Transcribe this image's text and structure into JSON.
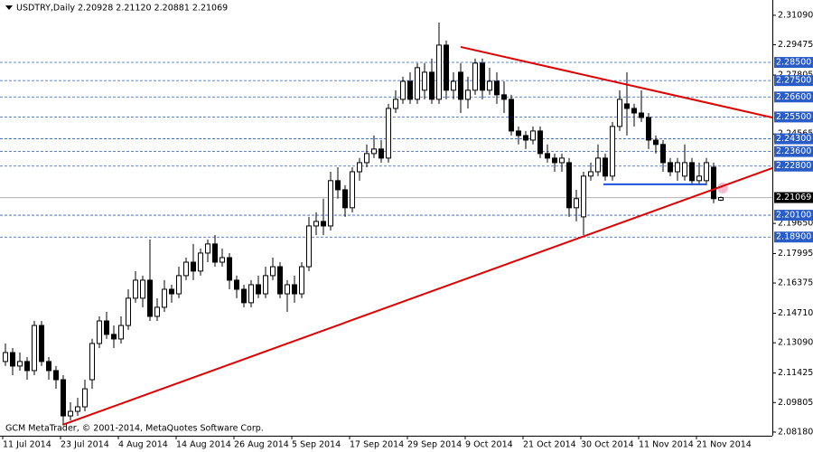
{
  "chart_data": {
    "type": "candlestick",
    "title": "USDTRY,Daily  2.20928 2.21120 2.20881 2.21069",
    "footer": "GCM MetaTrader, © 2001-2014, MetaQuotes Software Corp.",
    "up_color": "#ffffff",
    "down_color": "#000000",
    "edge_color": "#000000",
    "ylim": [
      2.0798,
      2.3193
    ],
    "yticks": [
      {
        "value": 2.3109,
        "label": "2.31090"
      },
      2.29475,
      2.27805,
      2.24565,
      {
        "value": 2.1965,
        "label": "2.19650"
      },
      2.17995,
      2.16375,
      {
        "value": 2.1471,
        "label": "2.14710"
      },
      {
        "value": 2.1309,
        "label": "2.13090"
      },
      2.11425,
      2.09805,
      {
        "value": 2.0818,
        "label": "2.08180"
      }
    ],
    "levels": [
      {
        "value": 2.285,
        "label": "2.28500"
      },
      {
        "value": 2.275,
        "label": "2.27500"
      },
      {
        "value": 2.266,
        "label": "2.26600"
      },
      {
        "value": 2.255,
        "label": "2.25500"
      },
      {
        "value": 2.243,
        "label": "2.24300"
      },
      {
        "value": 2.236,
        "label": "2.23600"
      },
      {
        "value": 2.228,
        "label": "2.22800"
      },
      {
        "value": 2.201,
        "label": "2.20100"
      },
      {
        "value": 2.189,
        "label": "2.18900"
      }
    ],
    "level_color": "#2a5cc8",
    "current_price": 2.21069,
    "trendlines": [
      {
        "color": "#e00000",
        "x": [
          63,
          106.4
        ],
        "y": [
          2.2935,
          2.2547
        ]
      },
      {
        "color": "#e00000",
        "x": [
          7.9,
          106.4
        ],
        "y": [
          2.0858,
          2.2269
        ]
      },
      {
        "color": "#1e50dc",
        "x": [
          82.75,
          97
        ],
        "y": [
          2.218,
          2.218
        ]
      }
    ],
    "categories": [
      "11 Jul 2014",
      null,
      null,
      null,
      null,
      null,
      null,
      null,
      "23 Jul 2014",
      null,
      null,
      null,
      null,
      null,
      null,
      null,
      "4 Aug 2014",
      null,
      null,
      null,
      null,
      null,
      null,
      null,
      "14 Aug 2014",
      null,
      null,
      null,
      null,
      null,
      null,
      null,
      "26 Aug 2014",
      null,
      null,
      null,
      null,
      null,
      null,
      null,
      "5 Sep 2014",
      null,
      null,
      null,
      null,
      null,
      null,
      null,
      "17 Sep 2014",
      null,
      null,
      null,
      null,
      null,
      null,
      null,
      "29 Sep 2014",
      null,
      null,
      null,
      null,
      null,
      null,
      null,
      "9 Oct 2014",
      null,
      null,
      null,
      null,
      null,
      null,
      null,
      "21 Oct 2014",
      null,
      null,
      null,
      null,
      null,
      null,
      null,
      "30 Oct 2014",
      null,
      null,
      null,
      null,
      null,
      null,
      null,
      "11 Nov 2014",
      null,
      null,
      null,
      null,
      null,
      null,
      null,
      "21 Nov 2014",
      null,
      null,
      null
    ],
    "ohlc": [
      [
        2.1206,
        2.1305,
        2.1181,
        2.1255
      ],
      [
        2.1255,
        2.128,
        2.1131,
        2.1181
      ],
      [
        2.1181,
        2.1255,
        2.1156,
        2.1206
      ],
      [
        2.1206,
        2.123,
        2.1106,
        2.1156
      ],
      [
        2.1156,
        2.1429,
        2.1131,
        2.1404
      ],
      [
        2.1404,
        2.1429,
        2.1181,
        2.1206
      ],
      [
        2.1206,
        2.123,
        2.1106,
        2.1156
      ],
      [
        2.1156,
        2.1181,
        2.1056,
        2.1106
      ],
      [
        2.1106,
        2.1131,
        2.0858,
        2.0907
      ],
      [
        2.0907,
        2.0982,
        2.0882,
        2.0932
      ],
      [
        2.0932,
        2.1006,
        2.0907,
        2.0957
      ],
      [
        2.0957,
        2.1106,
        2.0932,
        2.1056
      ],
      [
        2.1106,
        2.133,
        2.1056,
        2.1305
      ],
      [
        2.1305,
        2.1454,
        2.128,
        2.1429
      ],
      [
        2.1429,
        2.1479,
        2.133,
        2.1355
      ],
      [
        2.1355,
        2.1404,
        2.128,
        2.133
      ],
      [
        2.133,
        2.1454,
        2.1305,
        2.1404
      ],
      [
        2.1404,
        2.1603,
        2.138,
        2.1554
      ],
      [
        2.1554,
        2.1703,
        2.1529,
        2.1653
      ],
      [
        2.1554,
        2.1678,
        2.1504,
        2.1653
      ],
      [
        2.1653,
        2.1876,
        2.1429,
        2.1454
      ],
      [
        2.1454,
        2.1554,
        2.1429,
        2.1504
      ],
      [
        2.1504,
        2.1653,
        2.1479,
        2.1603
      ],
      [
        2.1603,
        2.1628,
        2.1529,
        2.1578
      ],
      [
        2.1578,
        2.1727,
        2.1554,
        2.1678
      ],
      [
        2.1678,
        2.1777,
        2.1653,
        2.1752
      ],
      [
        2.1752,
        2.1852,
        2.1653,
        2.1703
      ],
      [
        2.1703,
        2.1827,
        2.1678,
        2.1802
      ],
      [
        2.1802,
        2.1876,
        2.1752,
        2.1852
      ],
      [
        2.1852,
        2.1901,
        2.1727,
        2.1752
      ],
      [
        2.1752,
        2.1827,
        2.1727,
        2.1777
      ],
      [
        2.1777,
        2.1802,
        2.1603,
        2.1653
      ],
      [
        2.1653,
        2.1678,
        2.1554,
        2.1603
      ],
      [
        2.1603,
        2.1628,
        2.1504,
        2.1529
      ],
      [
        2.1529,
        2.1653,
        2.1504,
        2.1628
      ],
      [
        2.1628,
        2.1678,
        2.1554,
        2.1578
      ],
      [
        2.1578,
        2.1727,
        2.1554,
        2.1678
      ],
      [
        2.1678,
        2.1777,
        2.1653,
        2.1727
      ],
      [
        2.1727,
        2.1752,
        2.1554,
        2.1578
      ],
      [
        2.1578,
        2.1653,
        2.1479,
        2.1628
      ],
      [
        2.1628,
        2.1678,
        2.1529,
        2.1578
      ],
      [
        2.1578,
        2.1752,
        2.1554,
        2.1727
      ],
      [
        2.1727,
        2.2001,
        2.1703,
        2.1951
      ],
      [
        2.1951,
        2.2026,
        2.1901,
        2.1976
      ],
      [
        2.1976,
        2.2101,
        2.1901,
        2.1951
      ],
      [
        2.1951,
        2.2249,
        2.1926,
        2.22
      ],
      [
        2.22,
        2.2274,
        2.2101,
        2.215
      ],
      [
        2.215,
        2.2175,
        2.2001,
        2.2051
      ],
      [
        2.2051,
        2.2274,
        2.2026,
        2.2249
      ],
      [
        2.2249,
        2.2324,
        2.22,
        2.2299
      ],
      [
        2.2299,
        2.2399,
        2.2274,
        2.2349
      ],
      [
        2.2349,
        2.2448,
        2.2324,
        2.2374
      ],
      [
        2.2374,
        2.2423,
        2.2299,
        2.2324
      ],
      [
        2.2324,
        2.2622,
        2.2299,
        2.2597
      ],
      [
        2.2597,
        2.2697,
        2.2572,
        2.2647
      ],
      [
        2.2647,
        2.2771,
        2.2622,
        2.2746
      ],
      [
        2.2746,
        2.2796,
        2.2622,
        2.2647
      ],
      [
        2.2647,
        2.2846,
        2.2622,
        2.2821
      ],
      [
        2.2697,
        2.2846,
        2.2647,
        2.2796
      ],
      [
        2.2796,
        2.2871,
        2.2622,
        2.2647
      ],
      [
        2.2647,
        2.3069,
        2.2622,
        2.2945
      ],
      [
        2.2945,
        2.297,
        2.2647,
        2.2697
      ],
      [
        2.2697,
        2.2796,
        2.2647,
        2.2746
      ],
      [
        2.2796,
        2.2846,
        2.2572,
        2.2647
      ],
      [
        2.2647,
        2.2771,
        2.2597,
        2.2697
      ],
      [
        2.2697,
        2.2871,
        2.2672,
        2.2846
      ],
      [
        2.2846,
        2.2871,
        2.2647,
        2.2697
      ],
      [
        2.2697,
        2.2821,
        2.2672,
        2.2746
      ],
      [
        2.2746,
        2.2796,
        2.2622,
        2.2672
      ],
      [
        2.2672,
        2.2746,
        2.2572,
        2.2647
      ],
      [
        2.2647,
        2.2672,
        2.2448,
        2.2473
      ],
      [
        2.2473,
        2.2498,
        2.2399,
        2.2448
      ],
      [
        2.2448,
        2.2473,
        2.2374,
        2.2423
      ],
      [
        2.2423,
        2.2498,
        2.2399,
        2.2473
      ],
      [
        2.2473,
        2.2498,
        2.2324,
        2.2349
      ],
      [
        2.2349,
        2.2399,
        2.2299,
        2.2324
      ],
      [
        2.2324,
        2.2349,
        2.2249,
        2.2299
      ],
      [
        2.2299,
        2.2349,
        2.2249,
        2.2324
      ],
      [
        2.2299,
        2.2324,
        2.2001,
        2.2051
      ],
      [
        2.2051,
        2.215,
        2.1976,
        2.2101
      ],
      [
        2.2001,
        2.2249,
        2.1901,
        2.2225
      ],
      [
        2.2225,
        2.2299,
        2.22,
        2.2249
      ],
      [
        2.2249,
        2.2399,
        2.2225,
        2.2324
      ],
      [
        2.2324,
        2.2349,
        2.22,
        2.2225
      ],
      [
        2.2225,
        2.2523,
        2.22,
        2.2498
      ],
      [
        2.2498,
        2.2697,
        2.2473,
        2.2647
      ],
      [
        2.2622,
        2.2796,
        2.2448,
        2.2597
      ],
      [
        2.2597,
        2.2622,
        2.2498,
        2.2572
      ],
      [
        2.2572,
        2.2697,
        2.2523,
        2.2547
      ],
      [
        2.2547,
        2.2572,
        2.2374,
        2.2423
      ],
      [
        2.2423,
        2.2448,
        2.2349,
        2.2399
      ],
      [
        2.2399,
        2.2423,
        2.2249,
        2.2299
      ],
      [
        2.2299,
        2.2324,
        2.2225,
        2.2249
      ],
      [
        2.2249,
        2.2324,
        2.22,
        2.2299
      ],
      [
        2.2225,
        2.2399,
        2.22,
        2.2299
      ],
      [
        2.2299,
        2.2324,
        2.2175,
        2.22
      ],
      [
        2.22,
        2.2299,
        2.2175,
        2.2225
      ],
      [
        2.22,
        2.2324,
        2.2175,
        2.2299
      ],
      [
        2.2274,
        2.2299,
        2.2076,
        2.2101
      ],
      [
        2.20928,
        2.2112,
        2.20881,
        2.21069
      ]
    ]
  }
}
